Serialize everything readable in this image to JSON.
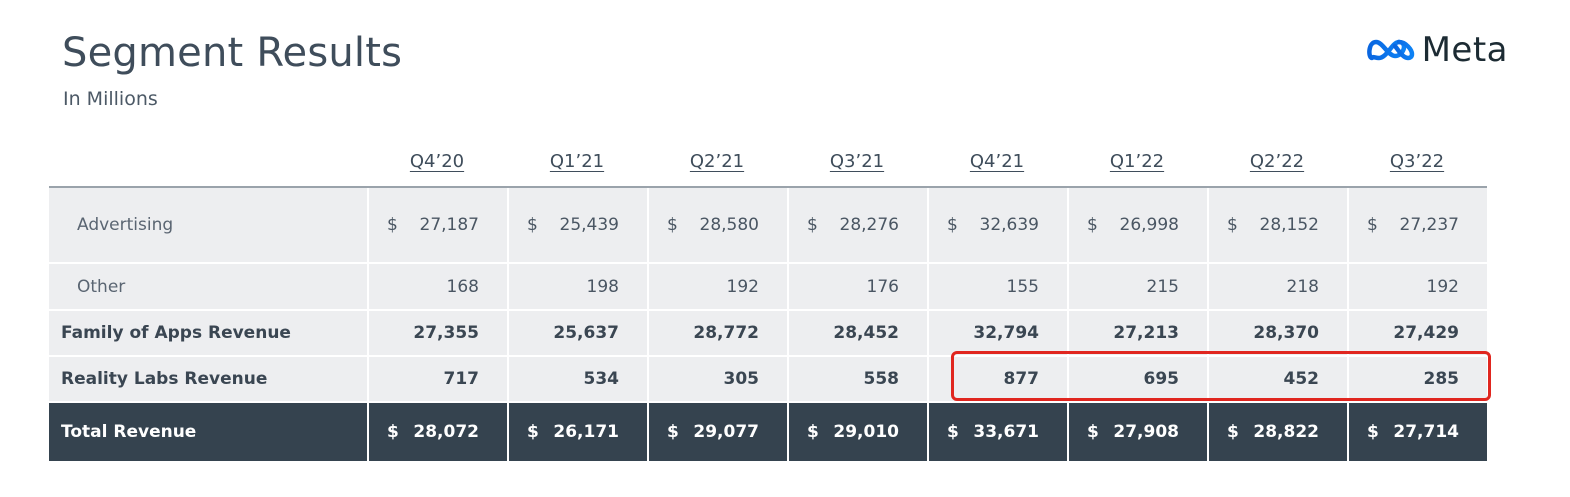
{
  "header": {
    "title": "Segment Results",
    "subtitle": "In Millions",
    "logo_text": "Meta"
  },
  "colors": {
    "header_row_dark": "#35434f",
    "row_bg": "#edeef0",
    "highlight_border": "#e0261f"
  },
  "table": {
    "columns": [
      "Q4’20",
      "Q1’21",
      "Q2’21",
      "Q3’21",
      "Q4’21",
      "Q1’22",
      "Q2’22",
      "Q3’22"
    ],
    "rows": {
      "advertising": {
        "label": "Advertising",
        "currency": "$",
        "values": [
          "27,187",
          "25,439",
          "28,580",
          "28,276",
          "32,639",
          "26,998",
          "28,152",
          "27,237"
        ]
      },
      "other": {
        "label": "Other",
        "values": [
          "168",
          "198",
          "192",
          "176",
          "155",
          "215",
          "218",
          "192"
        ]
      },
      "family_of_apps": {
        "label": "Family of Apps Revenue",
        "values": [
          "27,355",
          "25,637",
          "28,772",
          "28,452",
          "32,794",
          "27,213",
          "28,370",
          "27,429"
        ]
      },
      "reality_labs": {
        "label": "Reality Labs Revenue",
        "values": [
          "717",
          "534",
          "305",
          "558",
          "877",
          "695",
          "452",
          "285"
        ]
      },
      "total": {
        "label": "Total Revenue",
        "currency": "$",
        "values": [
          "28,072",
          "26,171",
          "29,077",
          "29,010",
          "33,671",
          "27,908",
          "28,822",
          "27,714"
        ]
      }
    }
  }
}
